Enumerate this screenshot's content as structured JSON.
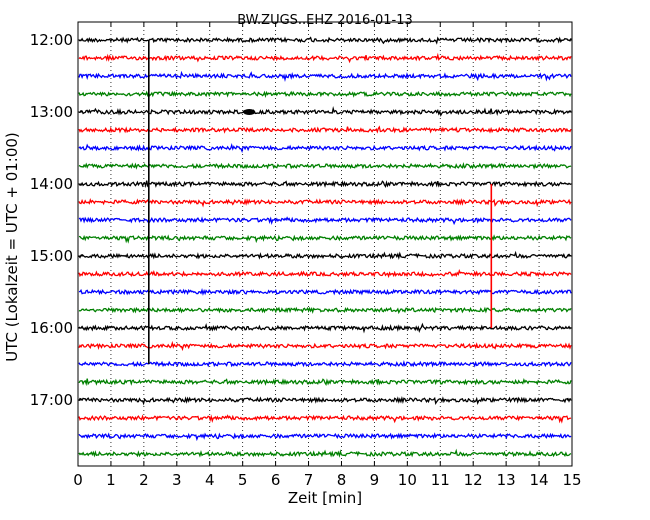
{
  "chart_data": {
    "type": "line",
    "title": "BW.ZUGS..EHZ 2016-01-13",
    "xlabel": "Zeit  [min]",
    "ylabel": "UTC (Lokalzeit = UTC + 01:00)",
    "xlim": [
      0,
      15
    ],
    "x_ticks": [
      0,
      1,
      2,
      3,
      4,
      5,
      6,
      7,
      8,
      9,
      10,
      11,
      12,
      13,
      14,
      15
    ],
    "y_ticks": [
      "12:00",
      "13:00",
      "14:00",
      "15:00",
      "16:00",
      "17:00"
    ],
    "grid": true,
    "trace_interval_minutes": 15,
    "trace_start": "12:00",
    "trace_count": 24,
    "trace_colors": [
      "#000000",
      "#ff0000",
      "#0000ff",
      "#008000"
    ],
    "events": [
      {
        "x_minute": 2.15,
        "from": "12:00",
        "to": "16:30",
        "color": "#000000"
      },
      {
        "x_minute": 12.55,
        "from": "14:00",
        "to": "16:00",
        "color": "#ff0000"
      },
      {
        "x_minute": 5.2,
        "at": "13:00",
        "color": "#000000"
      }
    ]
  }
}
